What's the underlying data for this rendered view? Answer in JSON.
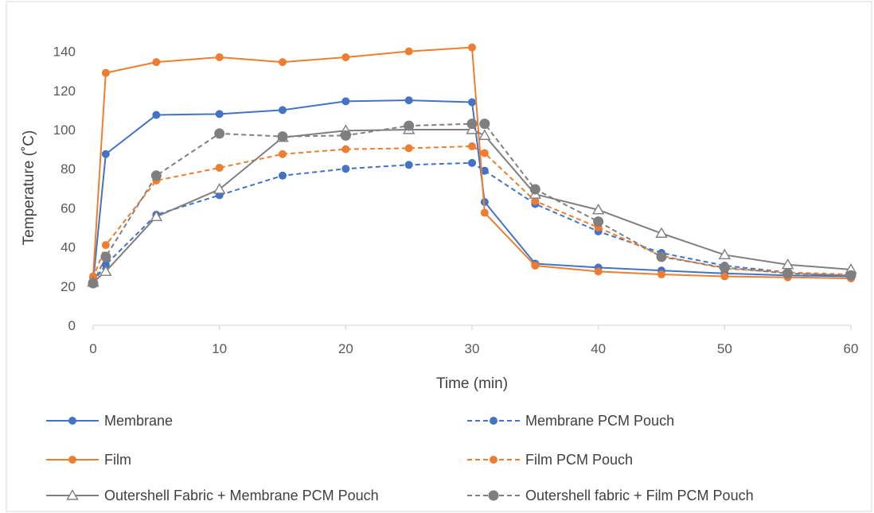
{
  "chart_data": {
    "type": "line",
    "title": "",
    "xlabel": "Time (min)",
    "ylabel": "Temperature (˚C)",
    "xlim": [
      0,
      60
    ],
    "ylim": [
      0,
      150
    ],
    "xticks": [
      0,
      10,
      20,
      30,
      40,
      50,
      60
    ],
    "yticks": [
      0,
      20,
      40,
      60,
      80,
      100,
      120,
      140
    ],
    "grid": false,
    "legend_position": "bottom",
    "series": [
      {
        "name": "Membrane",
        "color": "#4472C4",
        "dash": "solid",
        "marker": "circle-filled",
        "points": [
          [
            0,
            22
          ],
          [
            1,
            87.5
          ],
          [
            5,
            107.5
          ],
          [
            10,
            108
          ],
          [
            15,
            110
          ],
          [
            20,
            114.5
          ],
          [
            25,
            115
          ],
          [
            30,
            114
          ],
          [
            31,
            63
          ],
          [
            35,
            31.5
          ],
          [
            40,
            29.5
          ],
          [
            45,
            28
          ],
          [
            50,
            26.5
          ],
          [
            55,
            25.5
          ],
          [
            60,
            25
          ]
        ]
      },
      {
        "name": "Membrane PCM Pouch",
        "color": "#4472C4",
        "dash": "dashed",
        "marker": "circle-filled",
        "points": [
          [
            0,
            22
          ],
          [
            1,
            31
          ],
          [
            5,
            56.5
          ],
          [
            10,
            66.5
          ],
          [
            15,
            76.5
          ],
          [
            20,
            80
          ],
          [
            25,
            82
          ],
          [
            30,
            83
          ],
          [
            31,
            79
          ],
          [
            35,
            62
          ],
          [
            40,
            48
          ],
          [
            45,
            37
          ],
          [
            50,
            30.5
          ],
          [
            55,
            27
          ],
          [
            60,
            25
          ]
        ]
      },
      {
        "name": "Film",
        "color": "#ED7D31",
        "dash": "solid",
        "marker": "circle-filled",
        "points": [
          [
            0,
            25
          ],
          [
            1,
            129
          ],
          [
            5,
            134.5
          ],
          [
            10,
            137
          ],
          [
            15,
            134.5
          ],
          [
            20,
            137
          ],
          [
            25,
            140
          ],
          [
            30,
            142
          ],
          [
            31,
            57.5
          ],
          [
            35,
            30.5
          ],
          [
            40,
            27.5
          ],
          [
            45,
            26
          ],
          [
            50,
            25
          ],
          [
            55,
            24.5
          ],
          [
            60,
            24
          ]
        ]
      },
      {
        "name": "Film PCM Pouch",
        "color": "#ED7D31",
        "dash": "dashed",
        "marker": "circle-filled",
        "points": [
          [
            0,
            24
          ],
          [
            1,
            41
          ],
          [
            5,
            74
          ],
          [
            10,
            80.5
          ],
          [
            15,
            87.5
          ],
          [
            20,
            90
          ],
          [
            25,
            90.5
          ],
          [
            30,
            91.5
          ],
          [
            31,
            88
          ],
          [
            35,
            63.5
          ],
          [
            40,
            50
          ],
          [
            45,
            35.5
          ],
          [
            50,
            29
          ],
          [
            55,
            27
          ],
          [
            60,
            26
          ]
        ]
      },
      {
        "name": "Outershell Fabric + Membrane PCM Pouch",
        "color": "#7F7F7F",
        "dash": "solid",
        "marker": "triangle-open",
        "points": [
          [
            0,
            22
          ],
          [
            1,
            27.5
          ],
          [
            5,
            55.5
          ],
          [
            10,
            69.5
          ],
          [
            15,
            96
          ],
          [
            20,
            99.5
          ],
          [
            25,
            100
          ],
          [
            30,
            100
          ],
          [
            31,
            97
          ],
          [
            35,
            67
          ],
          [
            40,
            59
          ],
          [
            45,
            47
          ],
          [
            50,
            36
          ],
          [
            55,
            31
          ],
          [
            60,
            28.5
          ]
        ]
      },
      {
        "name": "Outershell fabric + Film PCM Pouch",
        "color": "#7F7F7F",
        "dash": "dashed",
        "marker": "circle-filled",
        "points": [
          [
            0,
            21.5
          ],
          [
            1,
            35
          ],
          [
            5,
            76.5
          ],
          [
            10,
            98
          ],
          [
            15,
            96.5
          ],
          [
            20,
            97
          ],
          [
            25,
            102
          ],
          [
            30,
            103
          ],
          [
            31,
            103
          ],
          [
            35,
            69.5
          ],
          [
            40,
            53
          ],
          [
            45,
            35
          ],
          [
            50,
            29.5
          ],
          [
            55,
            26.5
          ],
          [
            60,
            25.5
          ]
        ]
      }
    ]
  },
  "colors": {
    "axis_line": "#D9D9D9",
    "frame": "#D9D9D9",
    "background": "#FFFFFF"
  }
}
